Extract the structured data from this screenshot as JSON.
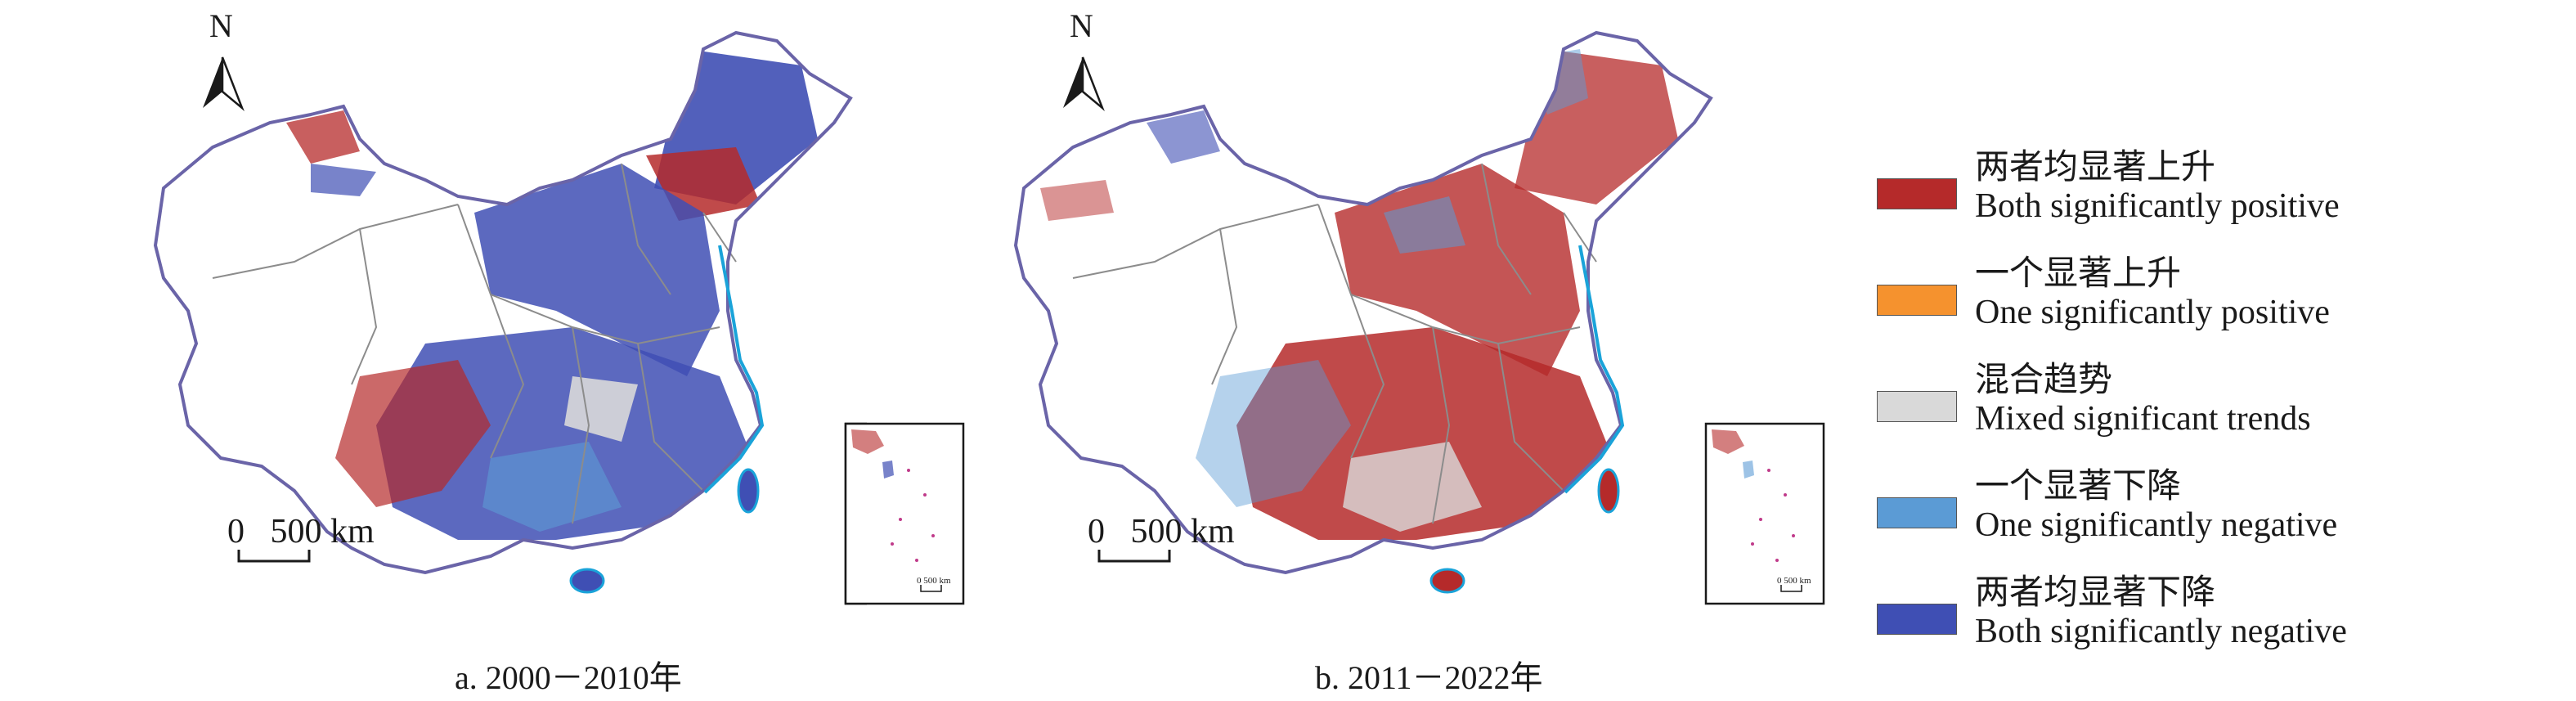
{
  "maps": [
    {
      "caption": "a. 2000－2010年",
      "north_label": "N",
      "scale_label": "0   500 km",
      "inset_scale_label": "0  500 km",
      "dominant": "negative"
    },
    {
      "caption": "b. 2011－2022年",
      "north_label": "N",
      "scale_label": "0   500 km",
      "inset_scale_label": "0  500 km",
      "dominant": "positive"
    }
  ],
  "legend": [
    {
      "zh": "两者均显著上升",
      "en": "Both significantly positive",
      "color": "#b52a2a"
    },
    {
      "zh": "一个显著上升",
      "en": "One significantly positive",
      "color": "#f5922e"
    },
    {
      "zh": "混合趋势",
      "en": "Mixed significant trends",
      "color": "#d9d9d9"
    },
    {
      "zh": "一个显著下降",
      "en": "One significantly negative",
      "color": "#5b9bd5"
    },
    {
      "zh": "两者均显著下降",
      "en": "Both significantly negative",
      "color": "#3f4fb4"
    }
  ],
  "colors": {
    "coast": "#1aa3d9",
    "border": "#6a64a8",
    "province": "#8c8c8c"
  }
}
